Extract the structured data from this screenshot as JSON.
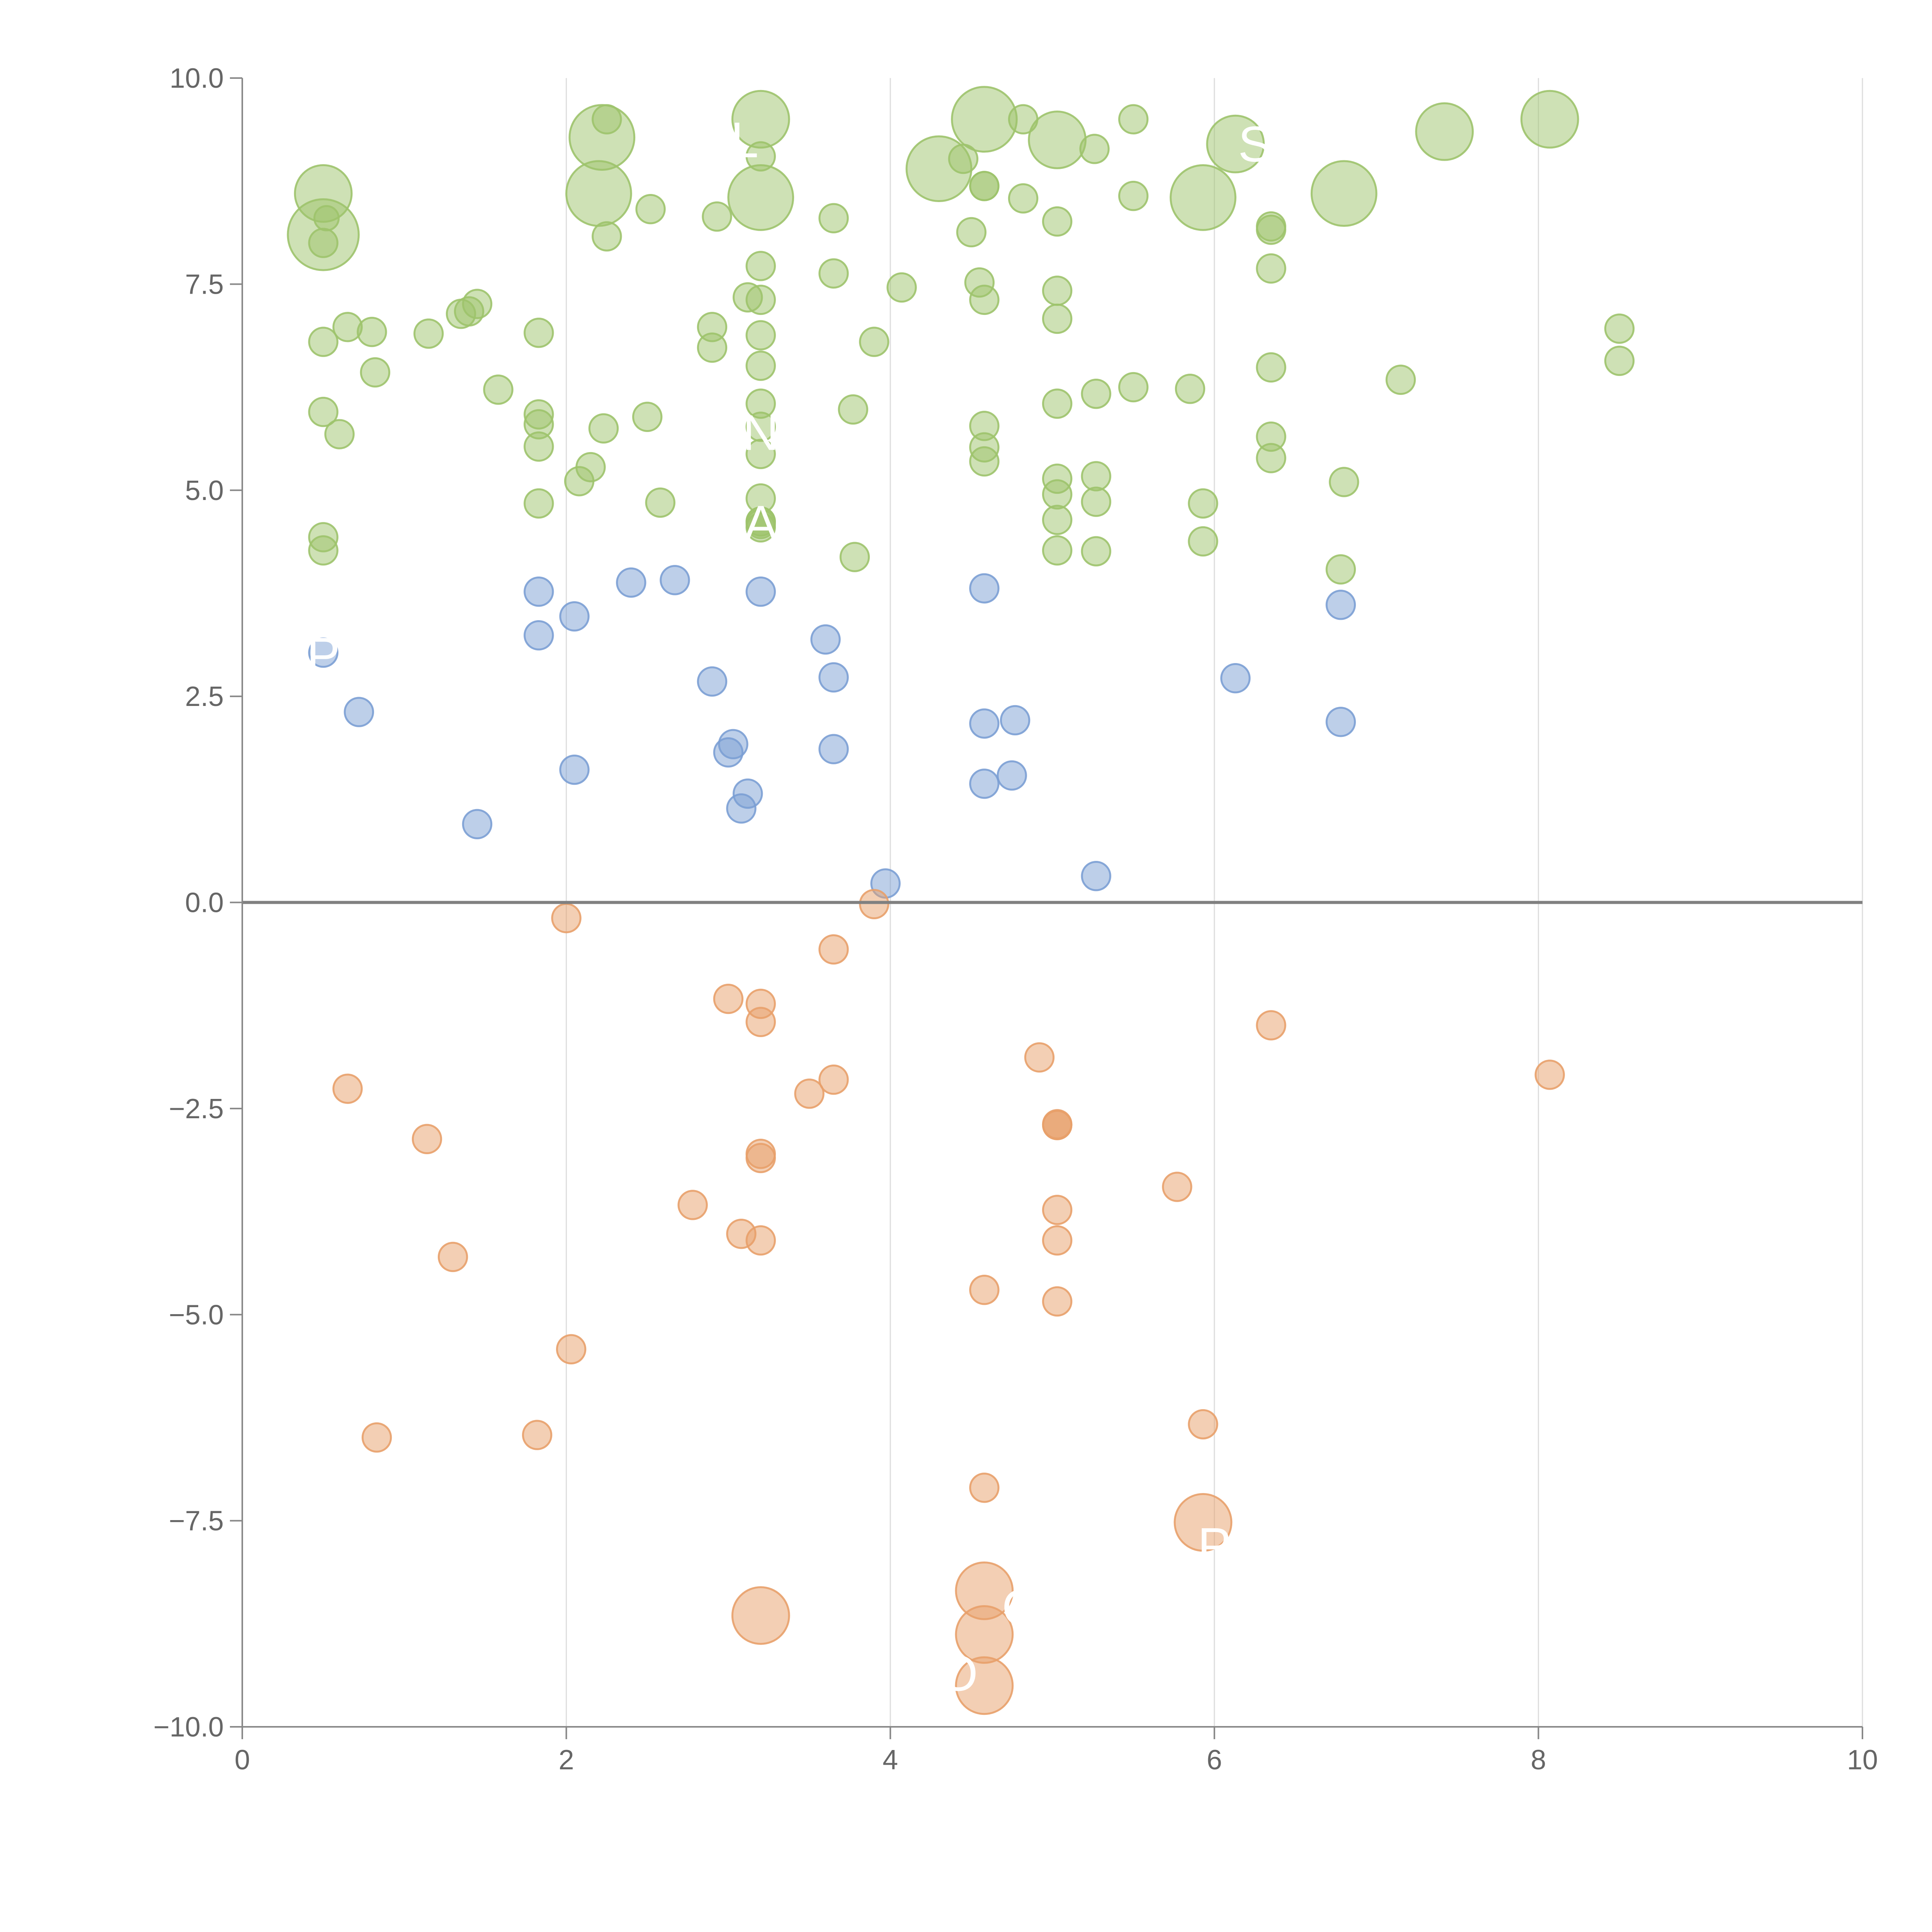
{
  "chart_data": {
    "type": "scatter",
    "title": "",
    "xlabel": "",
    "ylabel": "",
    "xlim": [
      0,
      10
    ],
    "ylim": [
      -10,
      10
    ],
    "x_ticks": [
      0,
      2,
      4,
      6,
      8,
      10
    ],
    "y_ticks": [
      10,
      7.5,
      5,
      2.5,
      0,
      -2.5,
      -5,
      -7.5,
      -10
    ],
    "x_tick_labels": [
      "0",
      "2",
      "4",
      "6",
      "8",
      "10"
    ],
    "y_tick_labels": [
      "10.0",
      "7.5",
      "5.0",
      "2.5",
      "0.0",
      "−2.5",
      "−5.0",
      "−7.5",
      "−10.0"
    ],
    "grid": "vertical",
    "zero_line": true,
    "legend": "none",
    "colors": {
      "green": "#9dc36b",
      "blue": "#7b9fd4",
      "orange": "#e8a06a"
    },
    "series": [
      {
        "color": "green",
        "x": [
          0.5,
          0.5,
          0.5,
          0.52,
          0.5,
          0.5,
          0.6,
          0.65,
          0.8,
          0.82,
          1.15,
          1.35,
          1.45,
          1.4,
          1.58,
          1.83,
          1.83,
          1.83,
          1.83,
          1.83,
          2.08,
          2.15,
          2.22,
          2.2,
          2.25,
          2.25,
          2.23,
          2.52,
          2.5,
          2.58,
          2.93,
          2.9,
          2.9,
          3.12,
          3.2,
          3.2,
          3.2,
          3.2,
          3.2,
          3.2,
          3.2,
          3.2,
          3.2,
          3.2,
          3.2,
          3.2,
          3.2,
          3.2,
          3.2,
          3.65,
          3.65,
          3.77,
          3.78,
          3.9,
          4.07,
          4.3,
          4.45,
          4.5,
          4.55,
          4.58,
          4.58,
          4.58,
          4.58,
          4.58,
          4.58,
          4.58,
          4.82,
          4.82,
          5.03,
          5.03,
          5.03,
          5.03,
          5.03,
          5.03,
          5.03,
          5.03,
          5.03,
          5.26,
          5.27,
          5.27,
          5.27,
          5.27,
          5.5,
          5.5,
          5.5,
          5.85,
          5.93,
          5.93,
          5.93,
          6.13,
          6.35,
          6.35,
          6.35,
          6.35,
          6.35,
          6.35,
          6.8,
          6.78,
          6.8,
          7.15,
          7.42,
          8.07,
          8.5,
          8.5,
          0.5,
          0.5
        ],
        "y": [
          8.6,
          8.1,
          8.0,
          8.3,
          6.8,
          5.95,
          5.68,
          6.98,
          6.92,
          6.43,
          6.9,
          7.14,
          7.26,
          7.17,
          6.22,
          6.91,
          5.92,
          5.8,
          5.53,
          4.84,
          5.11,
          5.28,
          9.28,
          8.6,
          8.08,
          9.5,
          5.75,
          8.41,
          5.89,
          4.85,
          8.32,
          6.98,
          6.73,
          7.34,
          9.5,
          9.05,
          8.55,
          7.72,
          7.31,
          6.88,
          6.51,
          6.05,
          5.77,
          5.44,
          4.9,
          4.55,
          4.59,
          4.62,
          4.62,
          8.3,
          7.63,
          5.98,
          4.19,
          6.8,
          7.46,
          8.9,
          9.02,
          8.13,
          7.52,
          9.5,
          8.69,
          8.69,
          7.31,
          5.78,
          5.52,
          5.35,
          9.5,
          8.54,
          9.25,
          8.26,
          7.42,
          7.08,
          6.05,
          5.14,
          4.95,
          4.64,
          4.27,
          9.14,
          6.17,
          5.17,
          4.86,
          4.26,
          9.5,
          8.57,
          6.25,
          6.23,
          8.55,
          4.84,
          4.38,
          9.2,
          8.2,
          8.16,
          7.69,
          6.49,
          5.65,
          5.39,
          8.6,
          4.04,
          5.1,
          6.34,
          9.35,
          9.5,
          6.96,
          6.57,
          4.43,
          4.27
        ],
        "size": [
          28,
          35,
          14,
          12,
          14,
          14,
          14,
          14,
          14,
          14,
          14,
          14,
          14,
          14,
          14,
          14,
          14,
          14,
          14,
          14,
          14,
          14,
          32,
          32,
          14,
          14,
          14,
          14,
          14,
          14,
          14,
          14,
          14,
          14,
          28,
          14,
          32,
          14,
          14,
          14,
          14,
          14,
          14,
          14,
          14,
          14,
          14,
          14,
          14,
          14,
          14,
          14,
          14,
          14,
          14,
          32,
          14,
          14,
          14,
          32,
          14,
          14,
          14,
          14,
          14,
          14,
          14,
          14,
          28,
          14,
          14,
          14,
          14,
          14,
          14,
          14,
          14,
          14,
          14,
          14,
          14,
          14,
          14,
          14,
          14,
          14,
          32,
          14,
          14,
          28,
          14,
          14,
          14,
          14,
          14,
          14,
          32,
          14,
          14,
          14,
          28,
          28,
          14,
          14,
          14,
          14
        ]
      },
      {
        "color": "blue",
        "x": [
          0.5,
          0.72,
          1.45,
          1.83,
          1.83,
          2.05,
          2.05,
          2.4,
          2.67,
          2.9,
          3.03,
          3.0,
          3.12,
          3.08,
          3.2,
          3.6,
          3.65,
          3.65,
          3.97,
          4.58,
          4.58,
          4.58,
          4.75,
          4.77,
          5.27,
          6.13,
          6.78,
          6.78
        ],
        "y": [
          3.03,
          2.31,
          0.95,
          3.77,
          3.24,
          3.47,
          1.61,
          3.88,
          3.91,
          2.68,
          1.92,
          1.82,
          1.32,
          1.14,
          3.77,
          3.19,
          2.73,
          1.86,
          0.23,
          3.81,
          2.17,
          1.44,
          1.54,
          2.21,
          0.32,
          2.72,
          3.61,
          2.19
        ],
        "size": [
          14,
          14,
          14,
          14,
          14,
          14,
          14,
          14,
          14,
          14,
          14,
          14,
          14,
          14,
          14,
          14,
          14,
          14,
          14,
          14,
          14,
          14,
          14,
          14,
          14,
          14,
          14,
          14
        ]
      },
      {
        "color": "orange",
        "x": [
          0.65,
          0.83,
          1.14,
          1.3,
          1.82,
          2.0,
          2.03,
          2.78,
          3.0,
          3.08,
          3.2,
          3.2,
          3.2,
          3.2,
          3.2,
          3.5,
          3.65,
          3.65,
          3.9,
          4.58,
          4.58,
          4.92,
          5.03,
          5.03,
          5.03,
          5.03,
          5.03,
          5.03,
          5.77,
          5.93,
          6.35,
          8.07,
          3.2,
          4.58,
          4.58,
          4.58,
          5.93
        ],
        "y": [
          -2.26,
          -6.49,
          -2.87,
          -4.3,
          -6.46,
          -0.19,
          -5.42,
          -3.67,
          -1.17,
          -4.02,
          -1.23,
          -1.45,
          -3.05,
          -3.1,
          -4.1,
          -2.32,
          -0.57,
          -2.15,
          -0.02,
          -4.7,
          -7.1,
          -1.88,
          -2.69,
          -2.7,
          -3.73,
          -4.1,
          -4.84,
          -2.7,
          -3.45,
          -6.33,
          -1.49,
          -2.09,
          -8.65,
          -8.35,
          -8.88,
          -9.5,
          -7.52
        ],
        "size": [
          14,
          14,
          14,
          14,
          14,
          14,
          14,
          14,
          14,
          14,
          14,
          14,
          14,
          14,
          14,
          14,
          14,
          14,
          14,
          14,
          14,
          14,
          14,
          14,
          14,
          14,
          14,
          14,
          14,
          14,
          14,
          14,
          28,
          28,
          28,
          28,
          28
        ]
      }
    ],
    "labels": [
      {
        "text": "L",
        "x": 3.1,
        "y": 9.25
      },
      {
        "text": "S",
        "x": 6.25,
        "y": 9.2
      },
      {
        "text": "N",
        "x": 3.2,
        "y": 5.7
      },
      {
        "text": "A",
        "x": 3.2,
        "y": 4.6
      },
      {
        "text": "P",
        "x": 0.5,
        "y": 3.0
      },
      {
        "text": "P",
        "x": 6.0,
        "y": -7.8
      },
      {
        "text": "C",
        "x": 4.8,
        "y": -8.55
      },
      {
        "text": "O",
        "x": 4.42,
        "y": -9.35
      }
    ]
  }
}
